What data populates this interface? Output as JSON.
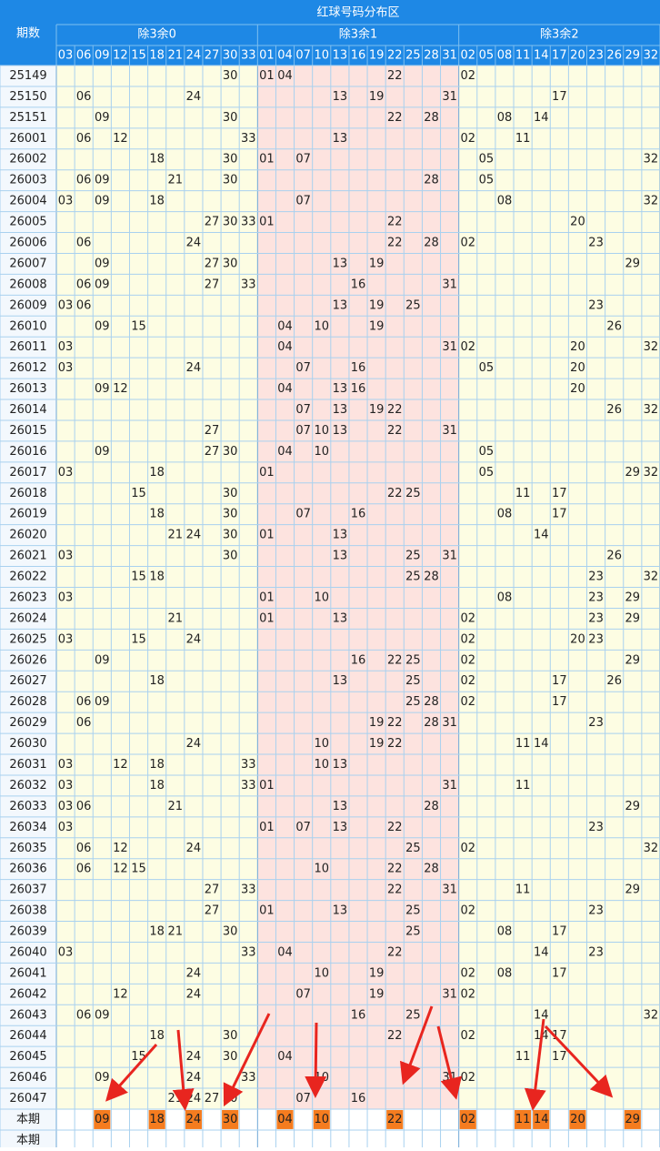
{
  "header": {
    "title": "红球号码分布区",
    "period_label": "期数",
    "groups": [
      {
        "name": "除3余0",
        "numbers": [
          "03",
          "06",
          "09",
          "12",
          "15",
          "18",
          "21",
          "24",
          "27",
          "30",
          "33"
        ]
      },
      {
        "name": "除3余1",
        "numbers": [
          "01",
          "04",
          "07",
          "10",
          "13",
          "16",
          "19",
          "22",
          "25",
          "28",
          "31"
        ]
      },
      {
        "name": "除3余2",
        "numbers": [
          "02",
          "05",
          "08",
          "11",
          "14",
          "17",
          "20",
          "23",
          "26",
          "29",
          "32"
        ]
      }
    ]
  },
  "rows": [
    {
      "period": "25149",
      "numbers": [
        "30",
        "01",
        "04",
        "22",
        "02"
      ]
    },
    {
      "period": "25150",
      "numbers": [
        "06",
        "24",
        "13",
        "19",
        "31",
        "17"
      ]
    },
    {
      "period": "25151",
      "numbers": [
        "09",
        "30",
        "22",
        "28",
        "08",
        "14"
      ]
    },
    {
      "period": "26001",
      "numbers": [
        "06",
        "12",
        "33",
        "13",
        "02",
        "11"
      ]
    },
    {
      "period": "26002",
      "numbers": [
        "18",
        "30",
        "01",
        "07",
        "05",
        "32"
      ]
    },
    {
      "period": "26003",
      "numbers": [
        "06",
        "09",
        "21",
        "30",
        "28",
        "05"
      ]
    },
    {
      "period": "26004",
      "numbers": [
        "03",
        "09",
        "18",
        "07",
        "08",
        "32"
      ]
    },
    {
      "period": "26005",
      "numbers": [
        "27",
        "30",
        "33",
        "01",
        "22",
        "20"
      ]
    },
    {
      "period": "26006",
      "numbers": [
        "06",
        "24",
        "22",
        "28",
        "02",
        "23"
      ]
    },
    {
      "period": "26007",
      "numbers": [
        "09",
        "27",
        "30",
        "13",
        "19",
        "29"
      ]
    },
    {
      "period": "26008",
      "numbers": [
        "06",
        "09",
        "27",
        "33",
        "16",
        "31"
      ]
    },
    {
      "period": "26009",
      "numbers": [
        "03",
        "06",
        "13",
        "19",
        "25",
        "23"
      ]
    },
    {
      "period": "26010",
      "numbers": [
        "09",
        "15",
        "04",
        "10",
        "19",
        "26"
      ]
    },
    {
      "period": "26011",
      "numbers": [
        "03",
        "04",
        "31",
        "02",
        "20",
        "32"
      ]
    },
    {
      "period": "26012",
      "numbers": [
        "03",
        "24",
        "07",
        "16",
        "05",
        "20"
      ]
    },
    {
      "period": "26013",
      "numbers": [
        "09",
        "12",
        "04",
        "13",
        "16",
        "20"
      ]
    },
    {
      "period": "26014",
      "numbers": [
        "07",
        "13",
        "19",
        "22",
        "26",
        "32"
      ]
    },
    {
      "period": "26015",
      "numbers": [
        "27",
        "07",
        "10",
        "13",
        "22",
        "31"
      ]
    },
    {
      "period": "26016",
      "numbers": [
        "09",
        "27",
        "30",
        "04",
        "10",
        "05"
      ]
    },
    {
      "period": "26017",
      "numbers": [
        "03",
        "18",
        "01",
        "05",
        "29",
        "32"
      ]
    },
    {
      "period": "26018",
      "numbers": [
        "15",
        "30",
        "22",
        "25",
        "11",
        "17"
      ]
    },
    {
      "period": "26019",
      "numbers": [
        "18",
        "30",
        "07",
        "16",
        "08",
        "17"
      ]
    },
    {
      "period": "26020",
      "numbers": [
        "21",
        "24",
        "30",
        "01",
        "13",
        "14"
      ]
    },
    {
      "period": "26021",
      "numbers": [
        "03",
        "30",
        "13",
        "25",
        "31",
        "26"
      ]
    },
    {
      "period": "26022",
      "numbers": [
        "15",
        "18",
        "25",
        "28",
        "23",
        "32"
      ]
    },
    {
      "period": "26023",
      "numbers": [
        "03",
        "01",
        "10",
        "08",
        "23",
        "29"
      ]
    },
    {
      "period": "26024",
      "numbers": [
        "21",
        "01",
        "13",
        "02",
        "23",
        "29"
      ]
    },
    {
      "period": "26025",
      "numbers": [
        "03",
        "15",
        "24",
        "02",
        "20",
        "23"
      ]
    },
    {
      "period": "26026",
      "numbers": [
        "09",
        "16",
        "22",
        "25",
        "02",
        "29"
      ]
    },
    {
      "period": "26027",
      "numbers": [
        "18",
        "13",
        "25",
        "02",
        "17",
        "26"
      ]
    },
    {
      "period": "26028",
      "numbers": [
        "06",
        "09",
        "25",
        "28",
        "02",
        "17"
      ]
    },
    {
      "period": "26029",
      "numbers": [
        "06",
        "19",
        "22",
        "28",
        "31",
        "23"
      ]
    },
    {
      "period": "26030",
      "numbers": [
        "24",
        "10",
        "19",
        "22",
        "11",
        "14"
      ]
    },
    {
      "period": "26031",
      "numbers": [
        "03",
        "12",
        "18",
        "33",
        "10",
        "13"
      ]
    },
    {
      "period": "26032",
      "numbers": [
        "03",
        "18",
        "33",
        "01",
        "31",
        "11"
      ]
    },
    {
      "period": "26033",
      "numbers": [
        "03",
        "06",
        "21",
        "13",
        "28",
        "29"
      ]
    },
    {
      "period": "26034",
      "numbers": [
        "03",
        "01",
        "07",
        "13",
        "22",
        "23"
      ]
    },
    {
      "period": "26035",
      "numbers": [
        "06",
        "12",
        "24",
        "25",
        "02",
        "32"
      ]
    },
    {
      "period": "26036",
      "numbers": [
        "06",
        "12",
        "15",
        "10",
        "22",
        "28"
      ]
    },
    {
      "period": "26037",
      "numbers": [
        "27",
        "33",
        "22",
        "31",
        "11",
        "29"
      ]
    },
    {
      "period": "26038",
      "numbers": [
        "27",
        "01",
        "13",
        "25",
        "02",
        "23"
      ]
    },
    {
      "period": "26039",
      "numbers": [
        "18",
        "21",
        "30",
        "25",
        "08",
        "17"
      ]
    },
    {
      "period": "26040",
      "numbers": [
        "03",
        "33",
        "04",
        "22",
        "14",
        "23"
      ]
    },
    {
      "period": "26041",
      "numbers": [
        "24",
        "10",
        "19",
        "02",
        "08",
        "17"
      ]
    },
    {
      "period": "26042",
      "numbers": [
        "12",
        "24",
        "07",
        "19",
        "31",
        "02"
      ]
    },
    {
      "period": "26043",
      "numbers": [
        "06",
        "09",
        "16",
        "25",
        "14",
        "32"
      ]
    },
    {
      "period": "26044",
      "numbers": [
        "18",
        "30",
        "22",
        "02",
        "14",
        "17"
      ]
    },
    {
      "period": "26045",
      "numbers": [
        "15",
        "24",
        "30",
        "04",
        "11",
        "17"
      ]
    },
    {
      "period": "26046",
      "numbers": [
        "09",
        "24",
        "33",
        "10",
        "31",
        "02"
      ]
    },
    {
      "period": "26047",
      "numbers": [
        "21",
        "24",
        "27",
        "30",
        "07",
        "16"
      ]
    }
  ],
  "current": {
    "label": "本期",
    "numbers": [
      "09",
      "18",
      "24",
      "30",
      "04",
      "10",
      "22",
      "02",
      "11",
      "14",
      "20",
      "29"
    ]
  },
  "next": {
    "label": "本期"
  }
}
